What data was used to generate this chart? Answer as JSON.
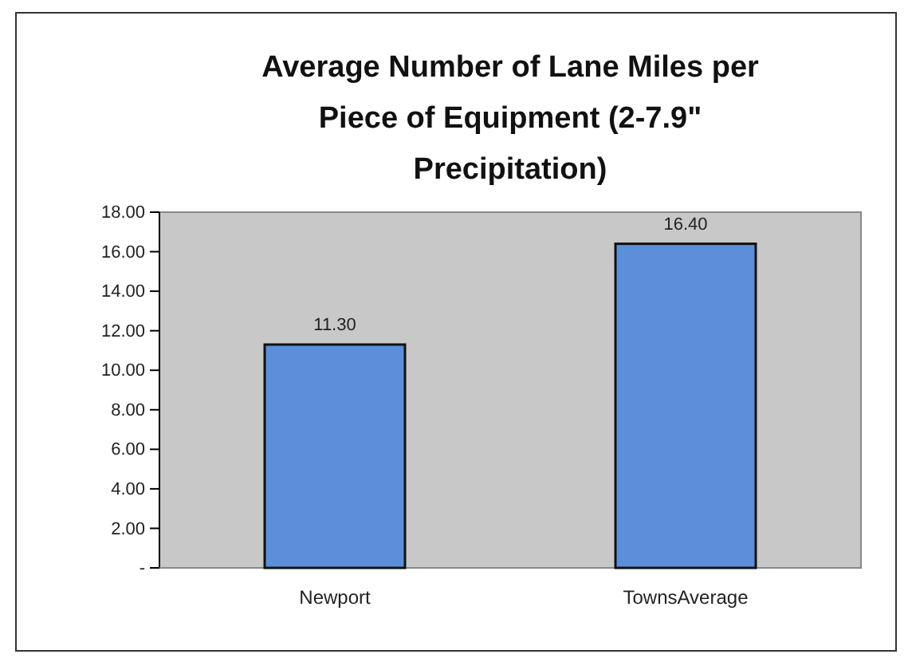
{
  "chart_data": {
    "type": "bar",
    "title": "Average Number of Lane Miles per Piece of Equipment (2-7.9\" Precipitation)",
    "categories": [
      "Newport",
      "TownsAverage"
    ],
    "values": [
      11.3,
      16.4
    ],
    "color": "#5b8fd9",
    "value_labels": [
      "11.30",
      "16.40"
    ],
    "ylim": [
      0,
      18
    ],
    "yticks": [
      {
        "value": 0,
        "label": "-"
      },
      {
        "value": 2,
        "label": "2.00"
      },
      {
        "value": 4,
        "label": "4.00"
      },
      {
        "value": 6,
        "label": "6.00"
      },
      {
        "value": 8,
        "label": "8.00"
      },
      {
        "value": 10,
        "label": "10.00"
      },
      {
        "value": 12,
        "label": "12.00"
      },
      {
        "value": 14,
        "label": "14.00"
      },
      {
        "value": 16,
        "label": "16.00"
      },
      {
        "value": 18,
        "label": "18.00"
      }
    ]
  }
}
